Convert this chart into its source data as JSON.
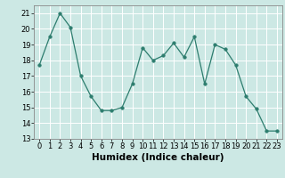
{
  "x": [
    0,
    1,
    2,
    3,
    4,
    5,
    6,
    7,
    8,
    9,
    10,
    11,
    12,
    13,
    14,
    15,
    16,
    17,
    18,
    19,
    20,
    21,
    22,
    23
  ],
  "y": [
    17.7,
    19.5,
    21.0,
    20.1,
    17.0,
    15.7,
    14.8,
    14.8,
    15.0,
    16.5,
    18.8,
    18.0,
    18.3,
    19.1,
    18.2,
    19.5,
    16.5,
    19.0,
    18.7,
    17.7,
    15.7,
    14.9,
    13.5,
    13.5
  ],
  "xlabel": "Humidex (Indice chaleur)",
  "xlim": [
    -0.5,
    23.5
  ],
  "ylim": [
    13,
    21.5
  ],
  "yticks": [
    13,
    14,
    15,
    16,
    17,
    18,
    19,
    20,
    21
  ],
  "xticks": [
    0,
    1,
    2,
    3,
    4,
    5,
    6,
    7,
    8,
    9,
    10,
    11,
    12,
    13,
    14,
    15,
    16,
    17,
    18,
    19,
    20,
    21,
    22,
    23
  ],
  "line_color": "#2d7d6e",
  "marker_size": 2.5,
  "bg_color": "#cce8e4",
  "grid_color": "#ffffff",
  "fig_bg": "#cce8e4",
  "tick_fontsize": 6.0,
  "xlabel_fontsize": 7.5
}
